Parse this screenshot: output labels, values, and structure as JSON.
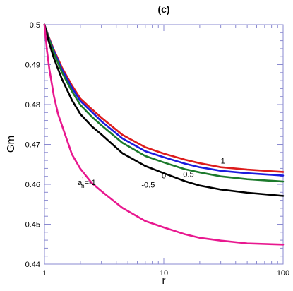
{
  "chart_data": {
    "type": "line",
    "title": "(c)",
    "xlabel": "r",
    "ylabel": "Gm",
    "xscale": "log",
    "xlim": [
      1,
      100
    ],
    "ylim": [
      0.44,
      0.5
    ],
    "grid": false,
    "legend": "none",
    "xticks": [
      {
        "value": 1,
        "label": "1"
      },
      {
        "value": 10,
        "label": "10"
      },
      {
        "value": 100,
        "label": "100"
      }
    ],
    "yticks": [
      {
        "value": 0.44,
        "label": "0.44"
      },
      {
        "value": 0.45,
        "label": "0.45"
      },
      {
        "value": 0.46,
        "label": "0.46"
      },
      {
        "value": 0.47,
        "label": "0.47"
      },
      {
        "value": 0.48,
        "label": "0.48"
      },
      {
        "value": 0.49,
        "label": "0.49"
      },
      {
        "value": 0.5,
        "label": "0.5"
      }
    ],
    "series": [
      {
        "name": "1",
        "color": "#dd1c1c",
        "x": [
          1,
          1.1,
          1.2,
          1.4,
          1.7,
          2,
          2.5,
          3,
          4.5,
          7,
          10,
          15,
          20,
          30,
          50,
          100
        ],
        "y": [
          0.5,
          0.4965,
          0.4937,
          0.4893,
          0.4848,
          0.4815,
          0.4788,
          0.4767,
          0.4724,
          0.4693,
          0.4677,
          0.4662,
          0.4653,
          0.4643,
          0.4637,
          0.4631
        ]
      },
      {
        "name": "0.5",
        "color": "#1c1cdd",
        "x": [
          1,
          1.1,
          1.2,
          1.4,
          1.7,
          2,
          2.5,
          3,
          4.5,
          7,
          10,
          15,
          20,
          30,
          50,
          100
        ],
        "y": [
          0.5,
          0.4963,
          0.4934,
          0.4888,
          0.4842,
          0.4809,
          0.4781,
          0.4758,
          0.4715,
          0.4683,
          0.4668,
          0.4652,
          0.4643,
          0.4634,
          0.4628,
          0.4622
        ]
      },
      {
        "name": "0",
        "color": "#1c7a2c",
        "x": [
          1,
          1.1,
          1.2,
          1.4,
          1.7,
          2,
          2.5,
          3,
          4.5,
          7,
          10,
          15,
          20,
          30,
          50,
          100
        ],
        "y": [
          0.5,
          0.4961,
          0.4929,
          0.4881,
          0.4833,
          0.4799,
          0.4769,
          0.4748,
          0.4704,
          0.4671,
          0.4655,
          0.4638,
          0.463,
          0.462,
          0.4613,
          0.4607
        ]
      },
      {
        "name": "-0.5",
        "color": "#000000",
        "x": [
          1,
          1.1,
          1.2,
          1.4,
          1.7,
          2,
          2.5,
          3,
          4.5,
          7,
          10,
          15,
          20,
          30,
          50,
          100
        ],
        "y": [
          0.5,
          0.4952,
          0.4916,
          0.4864,
          0.4811,
          0.4776,
          0.4745,
          0.4725,
          0.4678,
          0.4646,
          0.4628,
          0.4608,
          0.4597,
          0.4587,
          0.4579,
          0.4571
        ]
      },
      {
        "name": "a'h=-1",
        "color": "#e8188f",
        "x": [
          1,
          1.05,
          1.1,
          1.2,
          1.3,
          1.5,
          1.7,
          2,
          2.5,
          3,
          4.5,
          7,
          10,
          15,
          20,
          30,
          50,
          100
        ],
        "y": [
          0.5,
          0.4935,
          0.4888,
          0.4821,
          0.4776,
          0.4722,
          0.4675,
          0.4639,
          0.4603,
          0.4583,
          0.4541,
          0.4508,
          0.4492,
          0.4475,
          0.4466,
          0.4459,
          0.4452,
          0.4449
        ]
      }
    ],
    "annotations": [
      {
        "text": "1",
        "x": 30,
        "y": 0.4652,
        "color": "#000000"
      },
      {
        "text": "0.5",
        "x": 14.5,
        "y": 0.4619,
        "color": "#000000"
      },
      {
        "text": "0",
        "x": 9.6,
        "y": 0.4615,
        "color": "#000000"
      },
      {
        "text": "-0.5",
        "x": 6.5,
        "y": 0.4592,
        "color": "#000000"
      },
      {
        "text": "a'h=-1",
        "x": 1.9,
        "y": 0.4598,
        "color": "#000000",
        "rich": {
          "base": "a",
          "prime": "'",
          "sub": "h",
          "rest": "=-1"
        }
      }
    ]
  }
}
